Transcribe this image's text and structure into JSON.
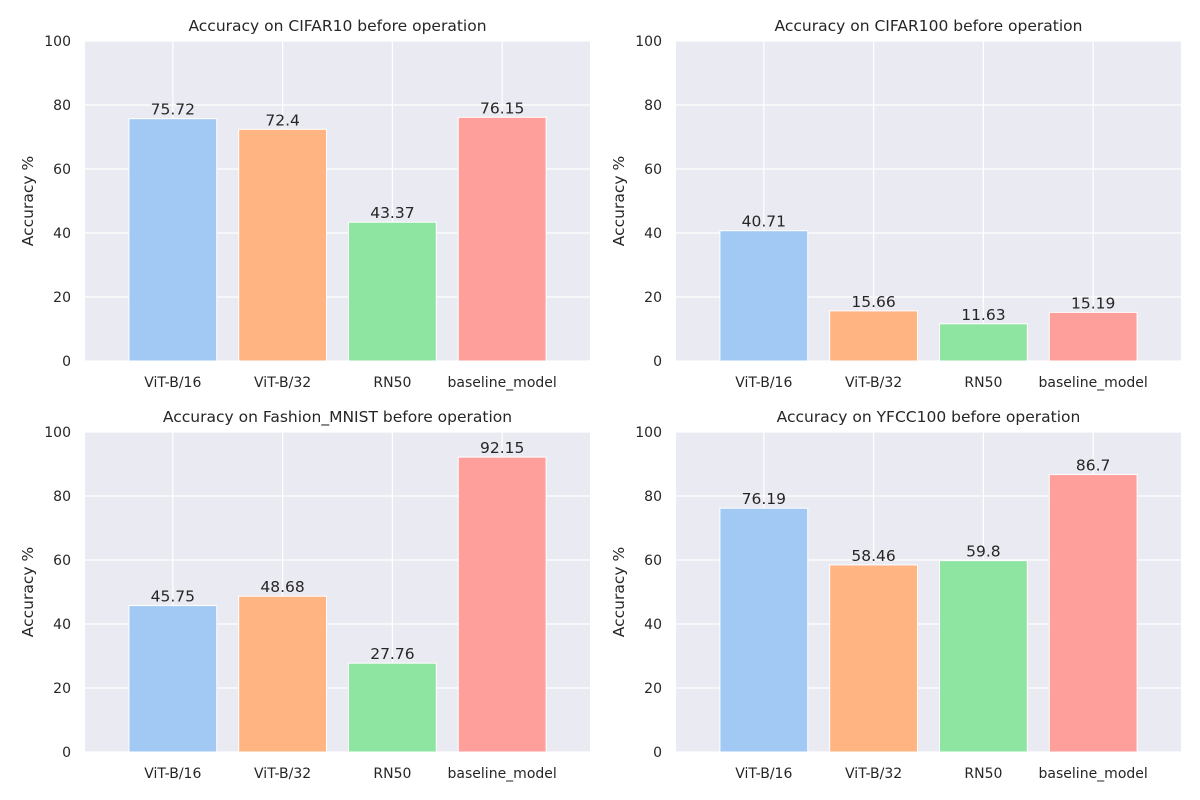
{
  "chart_data": [
    {
      "type": "bar",
      "title": "Accuracy on CIFAR10 before operation",
      "xlabel": "",
      "ylabel": "Accuracy %",
      "categories": [
        "ViT-B/16",
        "ViT-B/32",
        "RN50",
        "baseline_model"
      ],
      "values": [
        75.72,
        72.4,
        43.37,
        76.15
      ],
      "data_labels": [
        "75.72",
        "72.4",
        "43.37",
        "76.15"
      ],
      "ylim": [
        0,
        100
      ],
      "yticks": [
        0,
        20,
        40,
        60,
        80,
        100
      ],
      "grid": true
    },
    {
      "type": "bar",
      "title": "Accuracy on CIFAR100 before operation",
      "xlabel": "",
      "ylabel": "Accuracy %",
      "categories": [
        "ViT-B/16",
        "ViT-B/32",
        "RN50",
        "baseline_model"
      ],
      "values": [
        40.71,
        15.66,
        11.63,
        15.19
      ],
      "data_labels": [
        "40.71",
        "15.66",
        "11.63",
        "15.19"
      ],
      "ylim": [
        0,
        100
      ],
      "yticks": [
        0,
        20,
        40,
        60,
        80,
        100
      ],
      "grid": true
    },
    {
      "type": "bar",
      "title": "Accuracy on Fashion_MNIST before operation",
      "xlabel": "",
      "ylabel": "Accuracy %",
      "categories": [
        "ViT-B/16",
        "ViT-B/32",
        "RN50",
        "baseline_model"
      ],
      "values": [
        45.75,
        48.68,
        27.76,
        92.15
      ],
      "data_labels": [
        "45.75",
        "48.68",
        "27.76",
        "92.15"
      ],
      "ylim": [
        0,
        100
      ],
      "yticks": [
        0,
        20,
        40,
        60,
        80,
        100
      ],
      "grid": true
    },
    {
      "type": "bar",
      "title": "Accuracy on YFCC100 before operation",
      "xlabel": "",
      "ylabel": "Accuracy %",
      "categories": [
        "ViT-B/16",
        "ViT-B/32",
        "RN50",
        "baseline_model"
      ],
      "values": [
        76.19,
        58.46,
        59.8,
        86.7
      ],
      "data_labels": [
        "76.19",
        "58.46",
        "59.8",
        "86.7"
      ],
      "ylim": [
        0,
        100
      ],
      "yticks": [
        0,
        20,
        40,
        60,
        80,
        100
      ],
      "grid": true
    }
  ],
  "colors": {
    "bars": [
      "#a1c9f4",
      "#ffb482",
      "#8de5a1",
      "#ff9f9b"
    ],
    "plot_background": "#eaeaf2",
    "grid": "#ffffff",
    "text": "#262626"
  }
}
